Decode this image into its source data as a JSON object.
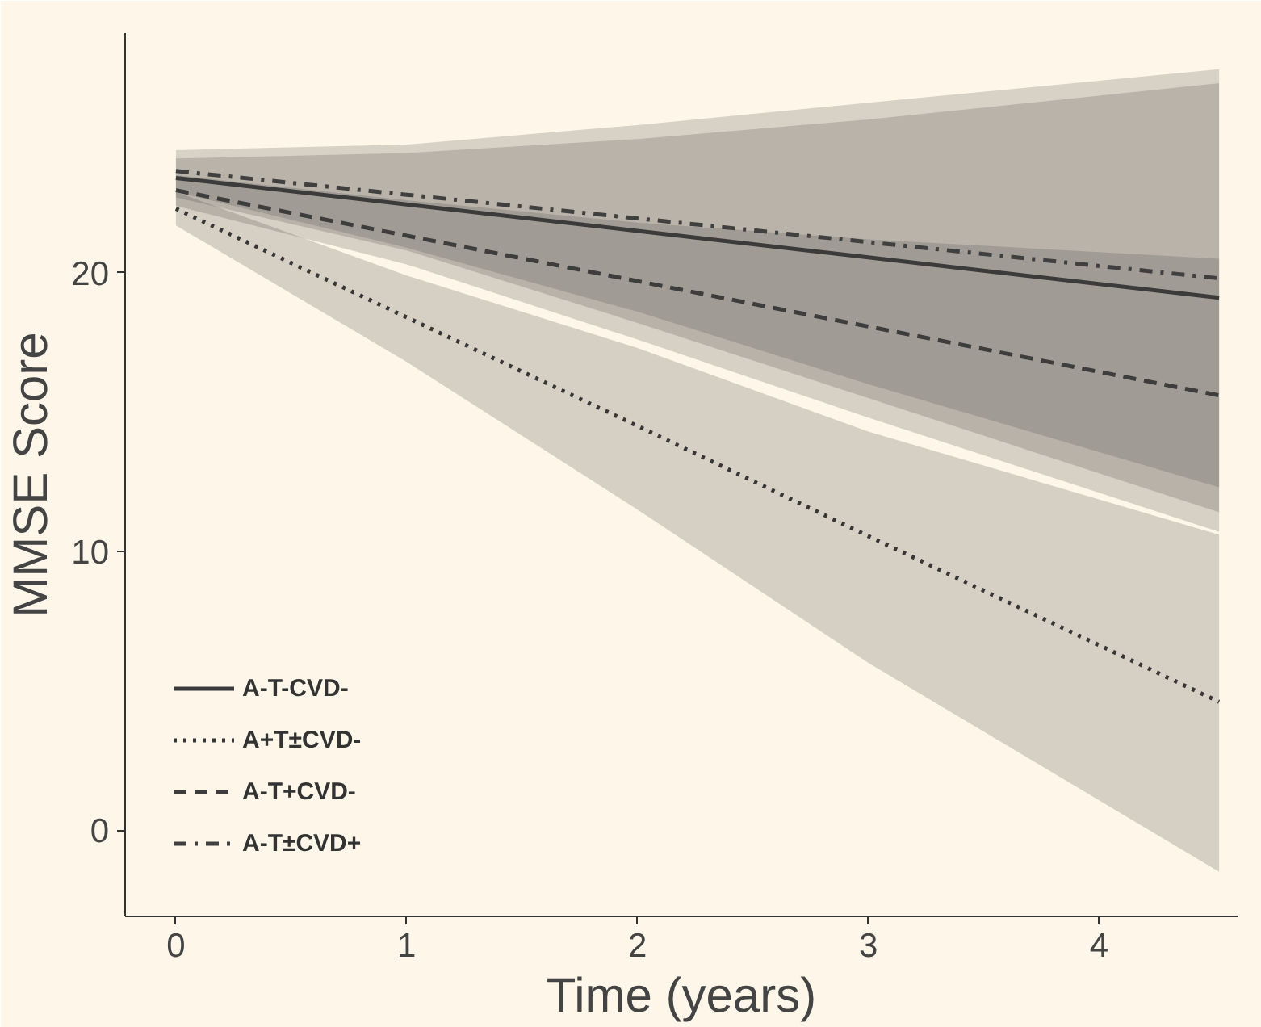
{
  "chart_data": {
    "type": "line",
    "xlabel": "Time (years)",
    "ylabel": "MMSE Score",
    "x": [
      0,
      1,
      2,
      3,
      4.52
    ],
    "xlim": [
      -0.22,
      4.6
    ],
    "ylim": [
      -3.1,
      28.6
    ],
    "xticks": [
      0,
      1,
      2,
      3,
      4
    ],
    "yticks": [
      0,
      10,
      20
    ],
    "grid": false,
    "legend": "bottom left",
    "marker": "none",
    "series": [
      {
        "name": "A-T-CVD-",
        "color": "#3a3a3a",
        "line_style": "solid",
        "values": [
          23.4,
          22.45,
          21.5,
          20.55,
          19.1
        ],
        "lower": [
          22.7,
          20.8,
          18.2,
          15.5,
          11.4
        ],
        "upper": [
          24.1,
          24.3,
          24.8,
          25.5,
          26.8
        ]
      },
      {
        "name": "A+T±CVD-",
        "color": "#363636",
        "line_style": "dotted",
        "values": [
          22.3,
          18.4,
          14.5,
          10.55,
          4.6
        ],
        "lower": [
          21.7,
          16.8,
          11.5,
          6.0,
          -1.5
        ],
        "upper": [
          22.9,
          19.9,
          17.3,
          14.3,
          10.6
        ]
      },
      {
        "name": "A-T+CVD-",
        "color": "#3d3d3d",
        "line_style": "dashed",
        "values": [
          22.96,
          21.33,
          19.7,
          18.07,
          15.6
        ],
        "lower": [
          22.4,
          20.3,
          17.6,
          14.8,
          10.7
        ],
        "upper": [
          23.5,
          22.6,
          21.8,
          21.2,
          20.5
        ]
      },
      {
        "name": "A-T±CVD+",
        "color": "#404040",
        "line_style": "dashdot",
        "values": [
          23.65,
          22.8,
          21.95,
          21.1,
          19.8
        ],
        "lower": [
          22.9,
          20.9,
          18.6,
          16.0,
          12.3
        ],
        "upper": [
          24.4,
          24.6,
          25.3,
          26.1,
          27.3
        ]
      }
    ]
  }
}
